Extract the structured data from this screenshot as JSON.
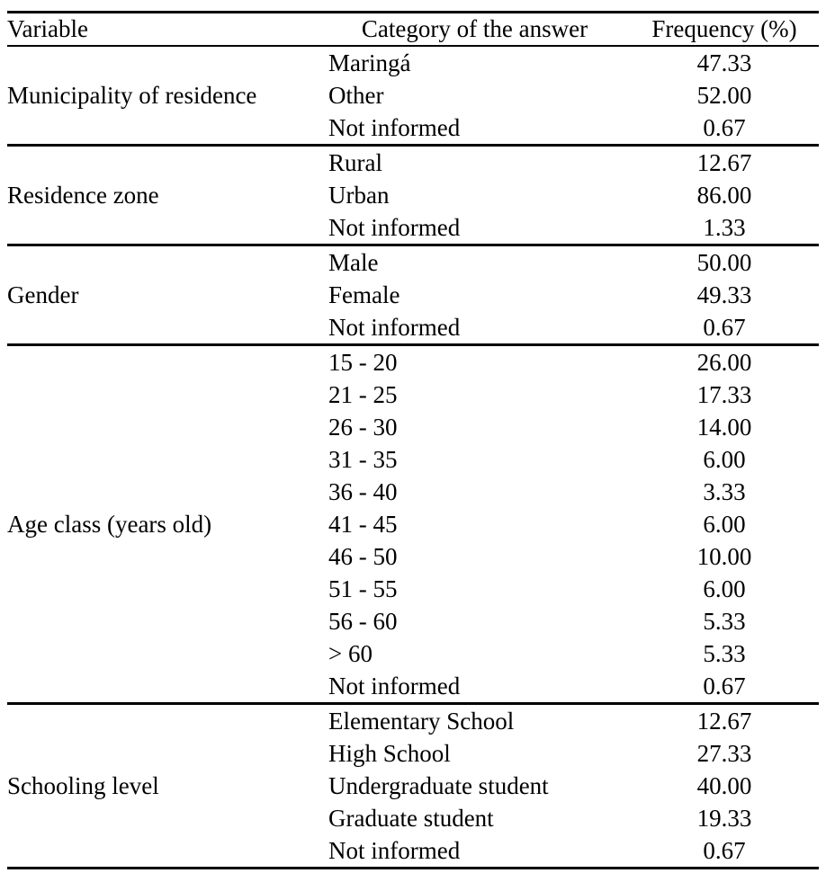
{
  "table": {
    "columns": [
      "Variable",
      "Category of the answer",
      "Frequency (%)"
    ],
    "sections": [
      {
        "variable": "Municipality of residence",
        "rows": [
          {
            "category": "Maringá",
            "frequency": "47.33"
          },
          {
            "category": "Other",
            "frequency": "52.00"
          },
          {
            "category": "Not informed",
            "frequency": "0.67"
          }
        ]
      },
      {
        "variable": "Residence zone",
        "rows": [
          {
            "category": "Rural",
            "frequency": "12.67"
          },
          {
            "category": "Urban",
            "frequency": "86.00"
          },
          {
            "category": "Not informed",
            "frequency": "1.33"
          }
        ]
      },
      {
        "variable": "Gender",
        "rows": [
          {
            "category": "Male",
            "frequency": "50.00"
          },
          {
            "category": "Female",
            "frequency": "49.33"
          },
          {
            "category": "Not informed",
            "frequency": "0.67"
          }
        ]
      },
      {
        "variable": "Age class (years old)",
        "rows": [
          {
            "category": "15 - 20",
            "frequency": "26.00"
          },
          {
            "category": "21 - 25",
            "frequency": "17.33"
          },
          {
            "category": "26 - 30",
            "frequency": "14.00"
          },
          {
            "category": "31 - 35",
            "frequency": "6.00"
          },
          {
            "category": "36 - 40",
            "frequency": "3.33"
          },
          {
            "category": "41 - 45",
            "frequency": "6.00"
          },
          {
            "category": "46 - 50",
            "frequency": "10.00"
          },
          {
            "category": "51 - 55",
            "frequency": "6.00"
          },
          {
            "category": "56 - 60",
            "frequency": "5.33"
          },
          {
            "category": "> 60",
            "frequency": "5.33"
          },
          {
            "category": "Not informed",
            "frequency": "0.67"
          }
        ]
      },
      {
        "variable": "Schooling level",
        "rows": [
          {
            "category": "Elementary School",
            "frequency": "12.67"
          },
          {
            "category": "High School",
            "frequency": "27.33"
          },
          {
            "category": "Undergraduate student",
            "frequency": "40.00"
          },
          {
            "category": "Graduate student",
            "frequency": "19.33"
          },
          {
            "category": "Not informed",
            "frequency": "0.67"
          }
        ]
      }
    ]
  },
  "colors": {
    "text": "#000000",
    "background": "#ffffff",
    "rule": "#000000"
  }
}
